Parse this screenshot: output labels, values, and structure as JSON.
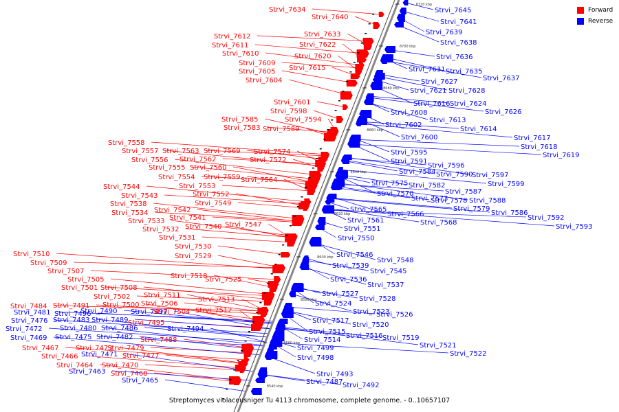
{
  "legend": {
    "forward": "Forward",
    "reverse": "Reverse"
  },
  "colors": {
    "forward": "#ff0000",
    "reverse": "#0000ff",
    "axis": "#888888"
  },
  "caption": "Streptomyces violaceusniger Tu 4113 chromosome, complete genome. - 0..10657107",
  "ticks": [
    "8720 kbp",
    "8700 kbp",
    "8680 kbp",
    "8660 kbp",
    "8640 kbp",
    "8620 kbp",
    "8600 kbp",
    "8580 kbp",
    "8560 kbp",
    "8540 kbp"
  ],
  "forward_labels": [
    "Strvi_7634",
    "Strvi_7640",
    "Strvi_7633",
    "Strvi_7622",
    "Strvi_7612",
    "Strvi_7611",
    "Strvi_7610",
    "Strvi_7620",
    "Strvi_7609",
    "Strvi_7615",
    "Strvi_7605",
    "Strvi_7604",
    "Strvi_7601",
    "Strvi_7598",
    "Strvi_7594",
    "Strvi_7585",
    "Strvi_7583",
    "Strvi_7589",
    "Strvi_7558",
    "Strvi_7557",
    "Strvi_7563",
    "Strvi_7569",
    "Strvi_7574",
    "Strvi_7556",
    "Strvi_7562",
    "Strvi_7572",
    "Strvi_7555",
    "Strvi_7560",
    "Strvi_7554",
    "Strvi_7559",
    "Strvi_7564",
    "Strvi_7544",
    "Strvi_7553",
    "Strvi_7543",
    "Strvi_7552",
    "Strvi_7538",
    "Strvi_7549",
    "Strvi_7534",
    "Strvi_7542",
    "Strvi_7533",
    "Strvi_7541",
    "Strvi_7532",
    "Strvi_7540",
    "Strvi_7547",
    "Strvi_7531",
    "Strvi_7530",
    "Strvi_7529",
    "Strvi_7510",
    "Strvi_7509",
    "Strvi_7507",
    "Strvi_7518",
    "Strvi_7505",
    "Strvi_7525",
    "Strvi_7501",
    "Strvi_7508",
    "Strvi_7511",
    "Strvi_7502",
    "Strvi_7506",
    "Strvi_7513",
    "Strvi_7500",
    "Strvi_7484",
    "Strvi_7491",
    "Strvi_7504",
    "Strvi_7512",
    "Strvi_7495",
    "Strvi_7488",
    "Strvi_7467",
    "Strvi_7473",
    "Strvi_7479",
    "Strvi_7477",
    "Strvi_7466",
    "Strvi_7464",
    "Strvi_7470",
    "Strvi_7468"
  ],
  "reverse_labels": [
    "Strvi_7645",
    "Strvi_7641",
    "Strvi_7639",
    "Strvi_7638",
    "Strvi_7636",
    "Strvi_7631",
    "Strvi_7635",
    "Strvi_7637",
    "Strvi_7627",
    "Strvi_7621",
    "Strvi_7628",
    "Strvi_7616",
    "Strvi_7624",
    "Strvi_7608",
    "Strvi_7626",
    "Strvi_7613",
    "Strvi_7614",
    "Strvi_7602",
    "Strvi_7617",
    "Strvi_7600",
    "Strvi_7618",
    "Strvi_7619",
    "Strvi_7595",
    "Strvi_7591",
    "Strvi_7596",
    "Strvi_7584",
    "Strvi_7590",
    "Strvi_7597",
    "Strvi_7575",
    "Strvi_7582",
    "Strvi_7599",
    "Strvi_7570",
    "Strvi_7587",
    "Strvi_7573",
    "Strvi_7578",
    "Strvi_7588",
    "Strvi_7565",
    "Strvi_7579",
    "Strvi_7586",
    "Strvi_7566",
    "Strvi_7592",
    "Strvi_7561",
    "Strvi_7568",
    "Strvi_7593",
    "Strvi_7551",
    "Strvi_7550",
    "Strvi_7546",
    "Strvi_7548",
    "Strvi_7539",
    "Strvi_7545",
    "Strvi_7536",
    "Strvi_7537",
    "Strvi_7527",
    "Strvi_7528",
    "Strvi_7524",
    "Strvi_7523",
    "Strvi_7526",
    "Strvi_7517",
    "Strvi_7520",
    "Strvi_7515",
    "Strvi_7516",
    "Strvi_7519",
    "Strvi_7514",
    "Strvi_7521",
    "Strvi_7499",
    "Strvi_7522",
    "Strvi_7498",
    "Strvi_7493",
    "Strvi_7487",
    "Strvi_7492",
    "Strvi_7465"
  ],
  "left_blue_labels": [
    "Strvi_7496",
    "Strvi_7490",
    "Strvi_7497",
    "Strvi_7481",
    "Strvi_7476",
    "Strvi_7483",
    "Strvi_7489",
    "Strvi_7472",
    "Strvi_7480",
    "Strvi_7486",
    "Strvi_7494",
    "Strvi_7469",
    "Strvi_7475",
    "Strvi_7482",
    "Strvi_7471",
    "Strvi_7463"
  ]
}
